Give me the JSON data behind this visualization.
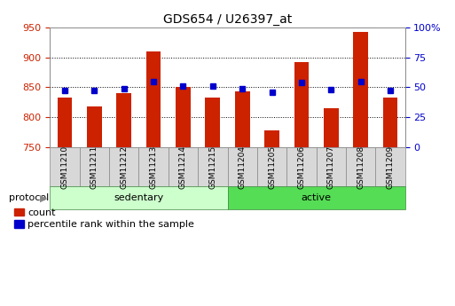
{
  "title": "GDS654 / U26397_at",
  "samples": [
    "GSM11210",
    "GSM11211",
    "GSM11212",
    "GSM11213",
    "GSM11214",
    "GSM11215",
    "GSM11204",
    "GSM11205",
    "GSM11206",
    "GSM11207",
    "GSM11208",
    "GSM11209"
  ],
  "count_values": [
    833,
    818,
    840,
    910,
    851,
    832,
    843,
    778,
    892,
    815,
    942,
    832
  ],
  "percentile_values": [
    47,
    47,
    49,
    55,
    51,
    51,
    49,
    46,
    54,
    48,
    55,
    47
  ],
  "groups": [
    {
      "label": "sedentary",
      "start": 0,
      "end": 6,
      "color": "#ccffcc"
    },
    {
      "label": "active",
      "start": 6,
      "end": 12,
      "color": "#55dd55"
    }
  ],
  "ylim_left": [
    750,
    950
  ],
  "ylim_right": [
    0,
    100
  ],
  "yticks_left": [
    750,
    800,
    850,
    900,
    950
  ],
  "yticks_right": [
    0,
    25,
    50,
    75,
    100
  ],
  "bar_color": "#cc2200",
  "dot_color": "#0000cc",
  "bar_width": 0.5,
  "background_color": "#ffffff",
  "grid_color": "#000000",
  "tick_color_left": "#cc2200",
  "tick_color_right": "#0000cc",
  "legend_items": [
    {
      "label": "count",
      "color": "#cc2200"
    },
    {
      "label": "percentile rank within the sample",
      "color": "#0000cc"
    }
  ],
  "xlim": [
    -0.5,
    11.5
  ]
}
